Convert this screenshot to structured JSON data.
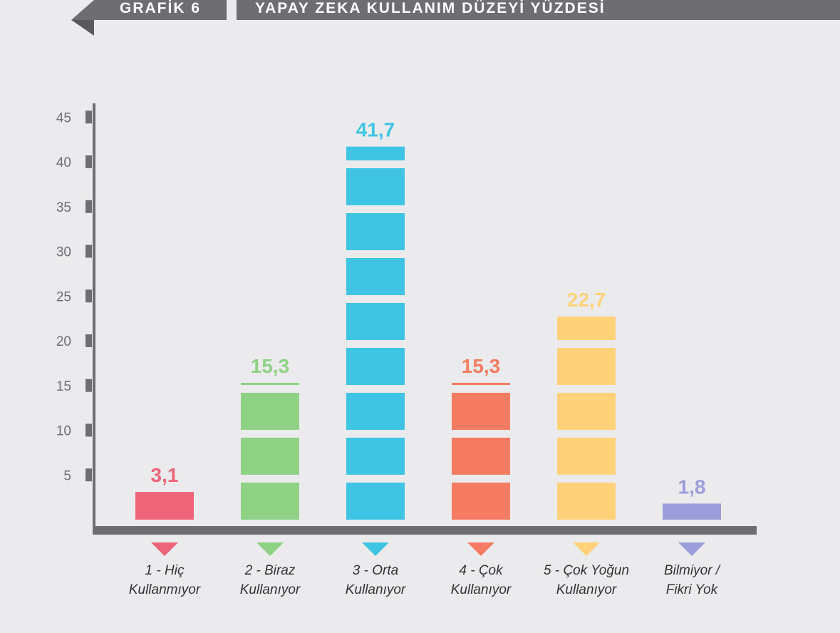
{
  "header": {
    "grafik_label": "GRAFİK 6",
    "title": "YAPAY ZEKA KULLANIM DÜZEYİ YÜZDESİ"
  },
  "colors": {
    "background": "#ebebed",
    "header_band": "#6e6e72",
    "axis": "#6e6e72",
    "tick_text": "#6f6f73",
    "category_text": "#333336"
  },
  "chart_data": {
    "type": "bar",
    "categories": [
      [
        "1 - Hiç",
        "Kullanmıyor"
      ],
      [
        "2 - Biraz",
        "Kullanıyor"
      ],
      [
        "3 - Orta",
        "Kullanıyor"
      ],
      [
        "4 - Çok",
        "Kullanıyor"
      ],
      [
        "5 - Çok Yoğun",
        "Kullanıyor"
      ],
      [
        "Bilmiyor /",
        "Fikri Yok"
      ]
    ],
    "values": [
      3.1,
      15.3,
      41.7,
      15.3,
      22.7,
      1.8
    ],
    "value_labels": [
      "3,1",
      "15,3",
      "41,7",
      "15,3",
      "22,7",
      "1,8"
    ],
    "bar_colors": [
      "#ee6479",
      "#8fd185",
      "#3fc4e4",
      "#f57c62",
      "#ffd27a",
      "#9c9ddb"
    ],
    "y_ticks": [
      5,
      10,
      15,
      20,
      25,
      30,
      35,
      40,
      45
    ],
    "ylim": [
      0,
      48
    ],
    "grid": false,
    "legend": "none",
    "title": "YAPAY ZEKA KULLANIM DÜZEYİ YÜZDESİ",
    "xlabel": "",
    "ylabel": ""
  }
}
